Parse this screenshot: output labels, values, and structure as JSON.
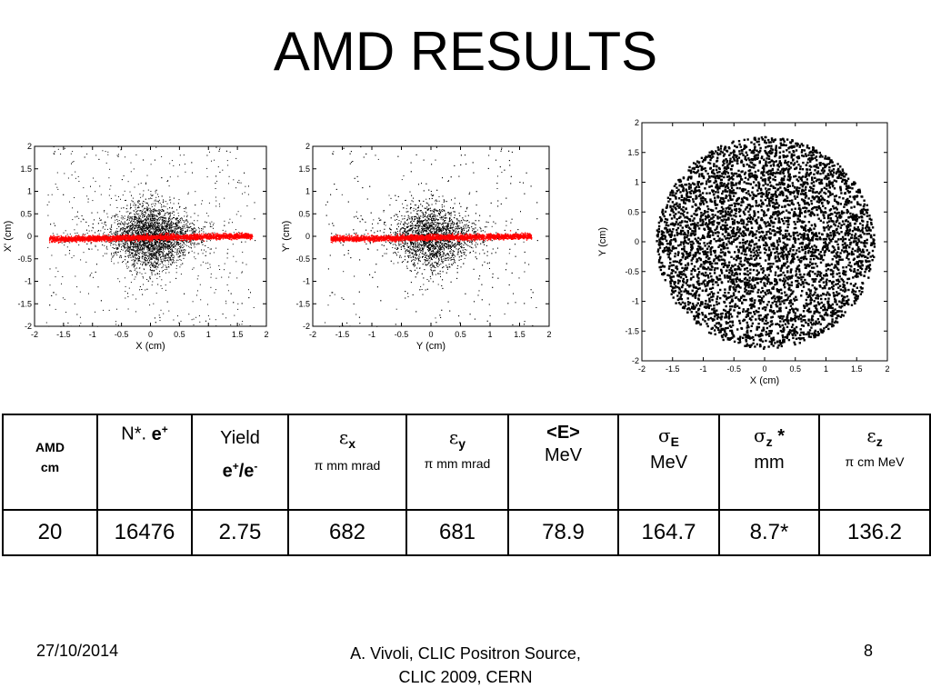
{
  "title": "AMD RESULTS",
  "chart_data": [
    {
      "type": "scatter",
      "title": "",
      "xlabel": "X (cm)",
      "ylabel": "X' (cm)",
      "xlim": [
        -2,
        2
      ],
      "ylim": [
        -2,
        2
      ],
      "xticks": [
        "-2",
        "-1.5",
        "-1",
        "-0.5",
        "0",
        "0.5",
        "1",
        "1.5",
        "2"
      ],
      "yticks": [
        "-2",
        "-1.5",
        "-1",
        "-0.5",
        "0",
        "0.5",
        "1",
        "1.5",
        "2"
      ],
      "grid": false,
      "series": [
        {
          "color": "#000000",
          "distribution": "diamond",
          "x_extent": [
            -1.8,
            1.8
          ],
          "y_extent": [
            -2,
            2
          ]
        },
        {
          "color": "#ff0000",
          "distribution": "band",
          "x_extent": [
            -1.75,
            1.75
          ],
          "y_extent": [
            -0.1,
            0.1
          ]
        }
      ]
    },
    {
      "type": "scatter",
      "title": "",
      "xlabel": "Y (cm)",
      "ylabel": "Y' (cm)",
      "xlim": [
        -2,
        2
      ],
      "ylim": [
        -2,
        2
      ],
      "xticks": [
        "-2",
        "-1.5",
        "-1",
        "-0.5",
        "0",
        "0.5",
        "1",
        "1.5",
        "2"
      ],
      "yticks": [
        "-2",
        "-1.5",
        "-1",
        "-0.5",
        "0",
        "0.5",
        "1",
        "1.5",
        "2"
      ],
      "grid": false,
      "series": [
        {
          "color": "#000000",
          "distribution": "diamond",
          "x_extent": [
            -1.8,
            1.8
          ],
          "y_extent": [
            -2,
            2
          ]
        },
        {
          "color": "#ff0000",
          "distribution": "band",
          "x_extent": [
            -1.7,
            1.7
          ],
          "y_extent": [
            -0.1,
            0.1
          ]
        }
      ]
    },
    {
      "type": "scatter",
      "title": "",
      "xlabel": "X (cm)",
      "ylabel": "Y (cm)",
      "xlim": [
        -2,
        2
      ],
      "ylim": [
        -2,
        2
      ],
      "xticks": [
        "-2",
        "-1.5",
        "-1",
        "-0.5",
        "0",
        "0.5",
        "1",
        "1.5",
        "2"
      ],
      "yticks": [
        "-2",
        "-1.5",
        "-1",
        "-0.5",
        "0",
        "0.5",
        "1",
        "1.5",
        "2"
      ],
      "grid": false,
      "series": [
        {
          "color": "#000000",
          "distribution": "disk",
          "radius": 1.78
        }
      ]
    }
  ],
  "table": {
    "headers": {
      "amd": "AMD",
      "amd_unit": "cm",
      "n": "N*.",
      "n_sym": "e+",
      "yield": "Yield",
      "yield_sym": "e+/e-",
      "ex_sym": "ε",
      "ex_sub": "x",
      "ex_unit": "π mm  mrad",
      "ey_sym": "ε",
      "ey_sub": "y",
      "ey_unit": "π mm mrad",
      "e_mean": "<E>",
      "e_unit": "MeV",
      "se_sym": "σ",
      "se_sub": "E",
      "se_unit": "MeV",
      "sz_sym": "σ",
      "sz_sub": "z",
      "sz_star": " *",
      "sz_unit": "mm",
      "ez_sym": "ε",
      "ez_sub": "z",
      "ez_unit": "π cm MeV"
    },
    "values": [
      "20",
      "16476",
      "2.75",
      "682",
      "681",
      "78.9",
      "164.7",
      "8.7*",
      "136.2"
    ]
  },
  "footer": {
    "date": "27/10/2014",
    "source_line1": "A. Vivoli,  CLIC Positron Source,",
    "source_line2": "CLIC 2009, CERN",
    "page": "8"
  }
}
